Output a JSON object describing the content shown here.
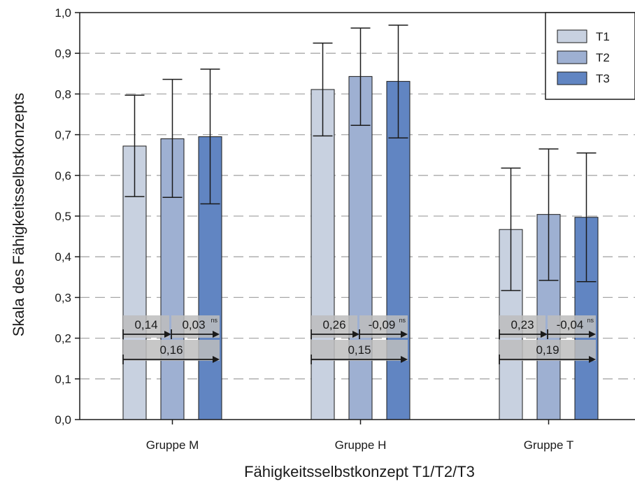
{
  "chart_data": {
    "type": "bar",
    "xlabel": "Fähigkeitsselbstkonzept T1/T2/T3",
    "ylabel": "Skala des Fähigkeitsselbstkonzepts",
    "ylim": [
      0,
      1
    ],
    "yticks": [
      "0,0",
      "0,1",
      "0,2",
      "0,3",
      "0,4",
      "0,5",
      "0,6",
      "0,7",
      "0,8",
      "0,9",
      "1,0"
    ],
    "grid": true,
    "legend_position": "top-right",
    "categories": [
      "Gruppe M",
      "Gruppe H",
      "Gruppe T"
    ],
    "series": [
      {
        "name": "T1",
        "color": "#c8d1e0",
        "values": [
          0.672,
          0.811,
          0.467
        ],
        "err_low": [
          0.548,
          0.697,
          0.317
        ],
        "err_high": [
          0.797,
          0.925,
          0.618
        ]
      },
      {
        "name": "T2",
        "color": "#9eb0d2",
        "values": [
          0.69,
          0.843,
          0.504
        ],
        "err_low": [
          0.546,
          0.723,
          0.342
        ],
        "err_high": [
          0.836,
          0.962,
          0.665
        ]
      },
      {
        "name": "T3",
        "color": "#6185c2",
        "values": [
          0.695,
          0.831,
          0.497
        ],
        "err_low": [
          0.53,
          0.692,
          0.339
        ],
        "err_high": [
          0.861,
          0.969,
          0.655
        ]
      }
    ],
    "annotations": [
      {
        "t1_t2": "0,14",
        "t2_t3": "0,03",
        "t2_t3_sup": "ns",
        "t1_t3": "0,16"
      },
      {
        "t1_t2": "0,26",
        "t2_t3": "-0,09",
        "t2_t3_sup": "ns",
        "t1_t3": "0,15"
      },
      {
        "t1_t2": "0,23",
        "t2_t3": "-0,04",
        "t2_t3_sup": "ns",
        "t1_t3": "0,19"
      }
    ]
  }
}
